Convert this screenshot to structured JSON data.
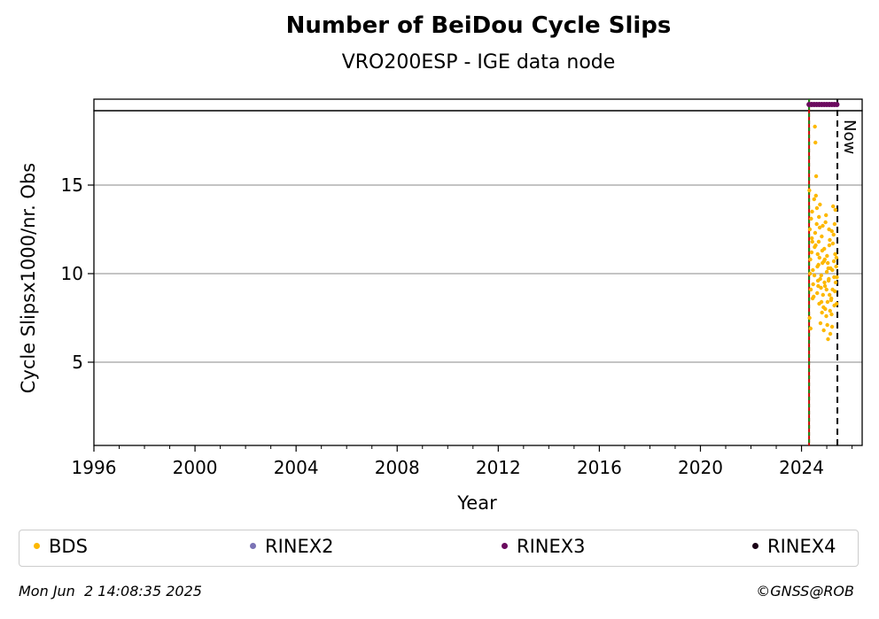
{
  "chart_data": {
    "type": "scatter",
    "title": "Number of BeiDou Cycle Slips",
    "subtitle": "VRO200ESP - IGE data node",
    "xlabel": "Year",
    "ylabel": "Cycle Slipsx1000/nr. Obs",
    "xlim": [
      1996,
      2026.4
    ],
    "ylim": [
      0.3,
      19.2
    ],
    "x_ticks": [
      "1996",
      "2000",
      "2004",
      "2008",
      "2012",
      "2016",
      "2020",
      "2024"
    ],
    "y_ticks": [
      "5",
      "10",
      "15"
    ],
    "grid": "horizontal",
    "now_label": "Now",
    "now_year": 2025.42,
    "data_start_year": 2024.3,
    "series": [
      {
        "name": "BDS",
        "color": "#FDB800",
        "x": [
          2024.31,
          2024.33,
          2024.35,
          2024.37,
          2024.4,
          2024.42,
          2024.45,
          2024.48,
          2024.5,
          2024.53,
          2024.55,
          2024.58,
          2024.6,
          2024.63,
          2024.65,
          2024.68,
          2024.7,
          2024.73,
          2024.75,
          2024.78,
          2024.8,
          2024.83,
          2024.85,
          2024.88,
          2024.9,
          2024.93,
          2024.95,
          2024.98,
          2025.0,
          2025.03,
          2025.05,
          2025.08,
          2025.1,
          2025.13,
          2025.15,
          2025.18,
          2025.2,
          2025.23,
          2025.25,
          2025.28,
          2025.3,
          2025.33,
          2025.35,
          2025.38,
          2025.4,
          2024.32,
          2024.38,
          2024.46,
          2024.52,
          2024.57,
          2024.62,
          2024.67,
          2024.72,
          2024.77,
          2024.82,
          2024.87,
          2024.92,
          2024.97,
          2025.02,
          2025.07,
          2025.12,
          2025.17,
          2025.22,
          2025.27,
          2025.32,
          2025.37,
          2024.36,
          2024.44,
          2024.54,
          2024.64,
          2024.74,
          2024.84,
          2024.94,
          2025.04,
          2025.14,
          2025.24,
          2025.34,
          2024.41,
          2024.51,
          2024.61,
          2024.71,
          2024.81,
          2024.91,
          2025.01,
          2025.11,
          2025.21,
          2025.31,
          2024.34,
          2024.56,
          2024.66,
          2024.79,
          2024.89,
          2024.99,
          2025.09,
          2025.19,
          2025.29,
          2025.39,
          2024.43,
          2024.69,
          2025.06
        ],
        "y": [
          14.7,
          12.5,
          10.8,
          9.1,
          11.2,
          13.5,
          10.2,
          8.7,
          14.2,
          18.3,
          17.4,
          15.5,
          12.8,
          10.4,
          9.6,
          11.8,
          8.3,
          13.9,
          7.2,
          9.9,
          12.1,
          10.6,
          8.8,
          6.8,
          11.4,
          9.3,
          12.9,
          7.6,
          10.1,
          8.4,
          6.3,
          9.7,
          11.6,
          7.9,
          10.3,
          8.6,
          12.4,
          9.1,
          13.8,
          10.7,
          8.2,
          11.1,
          9.5,
          10.9,
          9.8,
          7.5,
          13.1,
          9.4,
          11.5,
          14.4,
          8.9,
          10.5,
          12.6,
          9.2,
          11.3,
          8.1,
          10.8,
          13.3,
          7.1,
          9.6,
          11.9,
          8.5,
          10.2,
          12.2,
          9.0,
          10.4,
          6.9,
          8.6,
          12.3,
          11.1,
          9.7,
          12.7,
          8.0,
          10.6,
          6.6,
          11.7,
          13.6,
          12.0,
          9.9,
          13.7,
          10.9,
          7.8,
          9.5,
          11.0,
          8.8,
          7.0,
          12.8,
          10.0,
          11.6,
          9.3,
          8.4,
          10.7,
          9.1,
          12.5,
          7.7,
          9.8,
          8.3,
          11.8,
          13.2,
          10.3
        ]
      },
      {
        "name": "RINEX2",
        "color": "#7B73B5",
        "x": [],
        "y": []
      },
      {
        "name": "RINEX3",
        "color": "#6A0A5E",
        "x": [
          2024.3,
          2024.4,
          2024.5,
          2024.6,
          2024.7,
          2024.8,
          2024.9,
          2025.0,
          2025.1,
          2025.2,
          2025.3,
          2025.4
        ],
        "y": [
          19.5,
          19.5,
          19.5,
          19.5,
          19.5,
          19.5,
          19.5,
          19.5,
          19.5,
          19.5,
          19.5,
          19.5
        ]
      },
      {
        "name": "RINEX4",
        "color": "#1A0016",
        "x": [],
        "y": []
      }
    ],
    "legend_placement": "bottom",
    "footer_timestamp": "Mon Jun  2 14:08:35 2025",
    "footer_credit": "©GNSS@ROB"
  }
}
